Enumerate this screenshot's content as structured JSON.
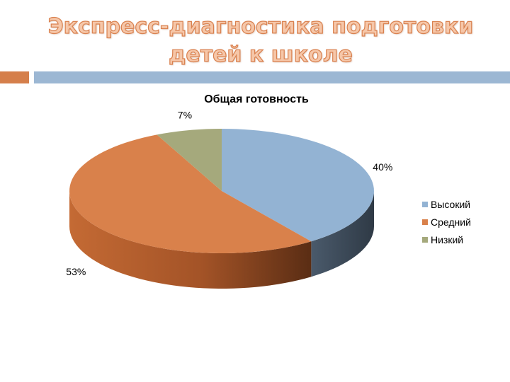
{
  "slide": {
    "title_line1": "Экспресс-диагностика подготовки",
    "title_line2": "детей к школе"
  },
  "chart_data": {
    "type": "pie",
    "title": "Общая готовность",
    "categories": [
      "Высокий",
      "Средний",
      "Низкий"
    ],
    "values": [
      40,
      53,
      7
    ],
    "data_labels": [
      "40%",
      "53%",
      "7%"
    ],
    "colors": [
      "#93b3d3",
      "#d9814b",
      "#a5a97c"
    ],
    "legend": "right"
  }
}
